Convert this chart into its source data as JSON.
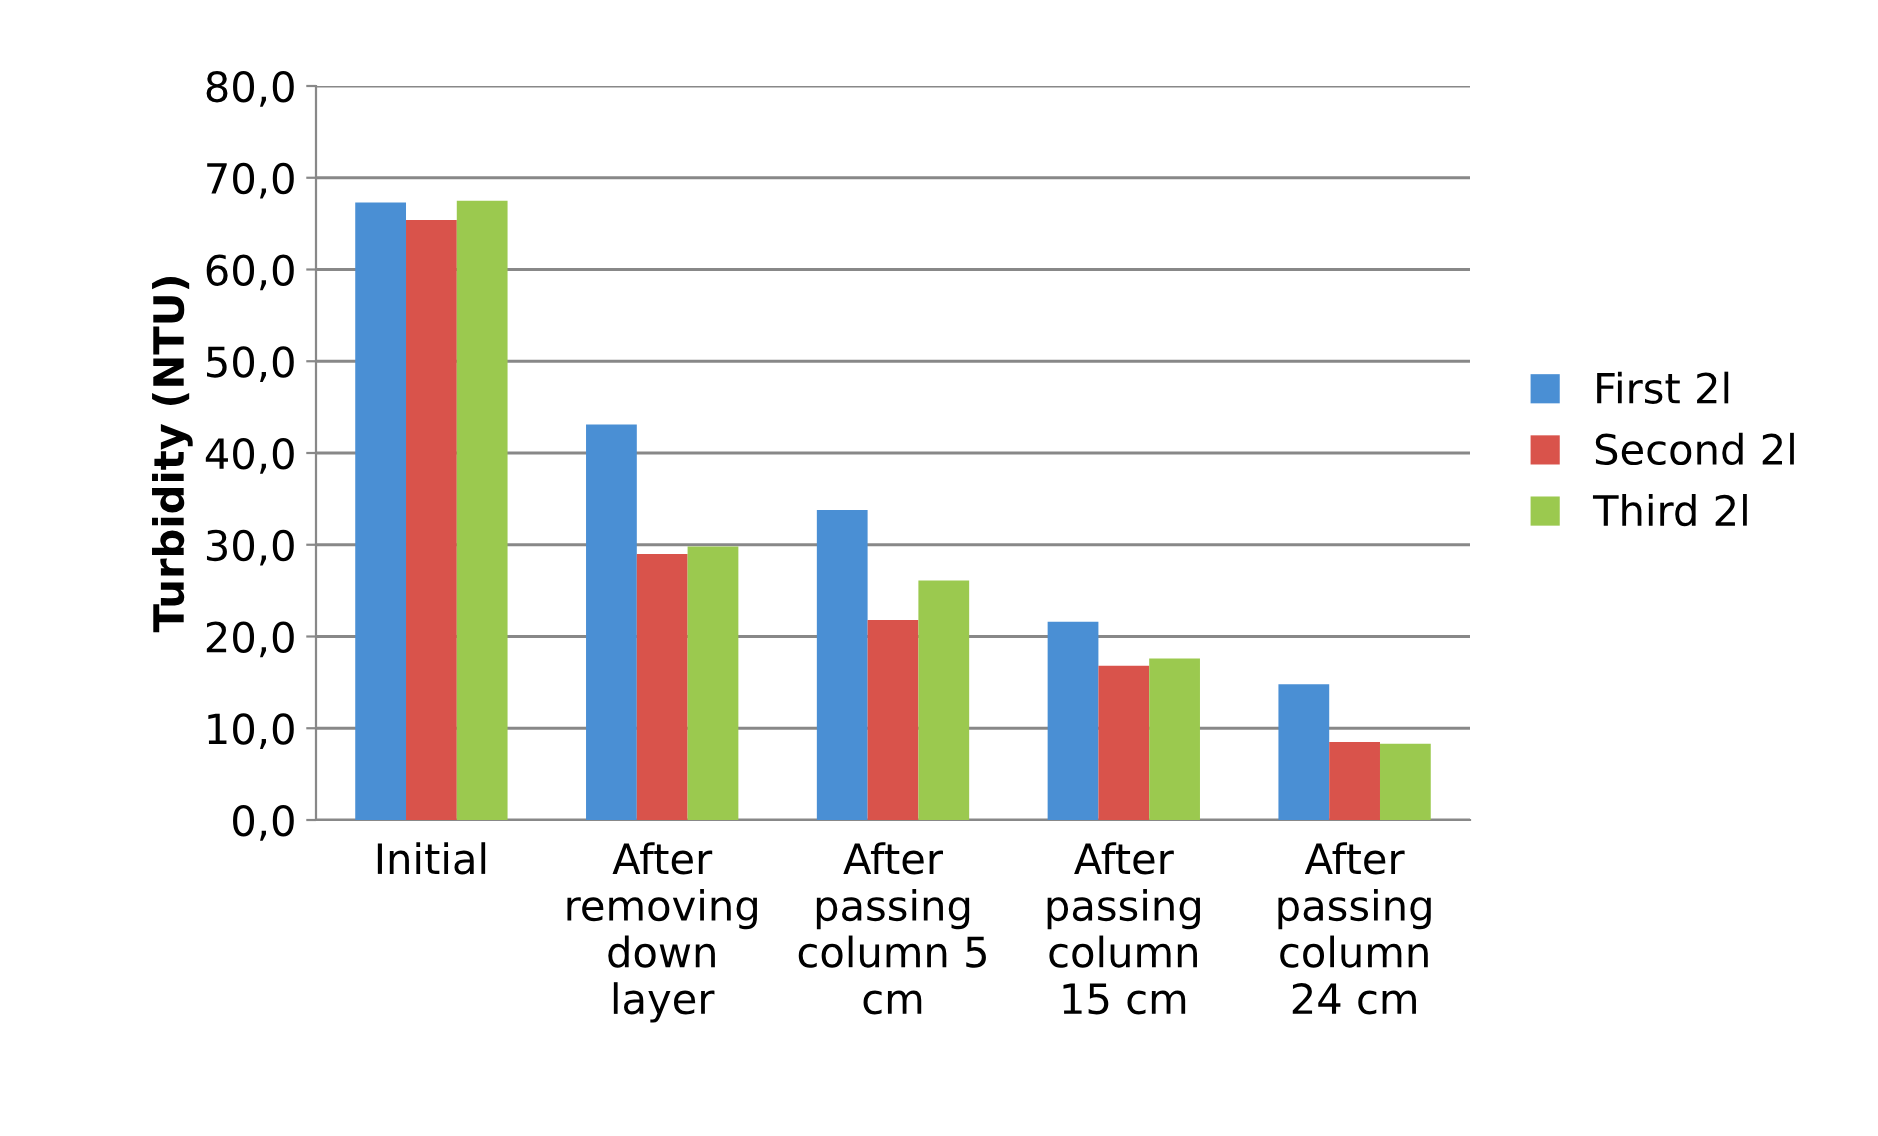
{
  "chart_data": {
    "type": "bar",
    "ylabel": "Turbidity (NTU)",
    "categories": [
      "Initial",
      "After\nremoving\ndown\nlayer",
      "After\npassing\ncolumn 5\ncm",
      "After\npassing\ncolumn\n15 cm",
      "After\npassing\ncolumn\n24 cm"
    ],
    "series": [
      {
        "name": "First 2l",
        "color": "#4a8fd4",
        "values": [
          67.3,
          43.1,
          33.8,
          21.6,
          14.8
        ]
      },
      {
        "name": "Second 2l",
        "color": "#d9534b",
        "values": [
          65.4,
          29.0,
          21.8,
          16.8,
          8.5
        ]
      },
      {
        "name": "Third 2l",
        "color": "#9bc94f",
        "values": [
          67.5,
          29.8,
          26.1,
          17.6,
          8.3
        ]
      }
    ],
    "ylim": [
      0,
      80
    ],
    "yticks": [
      {
        "value": 0,
        "label": "0,0"
      },
      {
        "value": 10,
        "label": "10,0"
      },
      {
        "value": 20,
        "label": "20,0"
      },
      {
        "value": 30,
        "label": "30,0"
      },
      {
        "value": 40,
        "label": "40,0"
      },
      {
        "value": 50,
        "label": "50,0"
      },
      {
        "value": 60,
        "label": "60,0"
      },
      {
        "value": 70,
        "label": "70,0"
      },
      {
        "value": 80,
        "label": "80,0"
      }
    ],
    "grid": "y",
    "legend": "right"
  }
}
